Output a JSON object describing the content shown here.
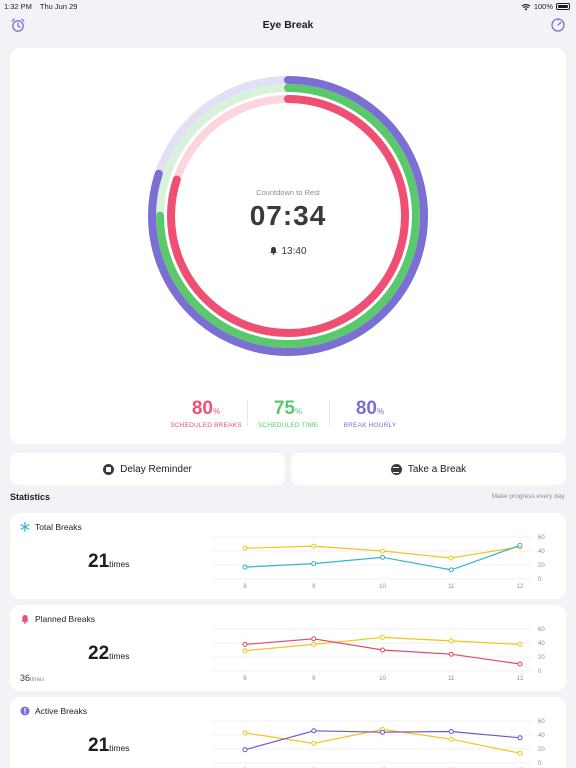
{
  "status": {
    "time": "1:32 PM",
    "date": "Thu Jun 29",
    "battery": "100%"
  },
  "nav": {
    "title": "Eye Break"
  },
  "timer": {
    "label": "Countdown to Rest",
    "countdown": "07:34",
    "alarm_time": "13:40",
    "rings": [
      {
        "name": "scheduled-breaks",
        "progress": 0.8,
        "color": "#ef4f73",
        "track": "#fbd6de"
      },
      {
        "name": "scheduled-time",
        "progress": 0.75,
        "color": "#5ac96b",
        "track": "#d9f2dc"
      },
      {
        "name": "break-hourly",
        "progress": 0.8,
        "color": "#7b6fd4",
        "track": "#e2e0f5"
      }
    ]
  },
  "summary": [
    {
      "value": "80",
      "unit": "%",
      "label": "SCHEDULED BREAKS",
      "color": "#ef4f73"
    },
    {
      "value": "75",
      "unit": "%",
      "label": "SCHEDULED TIME",
      "color": "#5ac96b"
    },
    {
      "value": "80",
      "unit": "%",
      "label": "BREAK HOURLY",
      "color": "#7b6fd4"
    }
  ],
  "actions": {
    "delay": "Delay Reminder",
    "take_break": "Take a Break"
  },
  "statistics": {
    "title": "Statistics",
    "hint": "Make progress every day."
  },
  "cards": [
    {
      "name": "Total Breaks",
      "count": "21",
      "unit": "times",
      "sub_count": "",
      "sub_unit": "",
      "icon_color": "#35b5c9"
    },
    {
      "name": "Planned Breaks",
      "count": "22",
      "unit": "times",
      "sub_count": "36",
      "sub_unit": "times",
      "icon_color": "#ef4f73"
    },
    {
      "name": "Active Breaks",
      "count": "21",
      "unit": "times",
      "sub_count": "",
      "sub_unit": "",
      "icon_color": "#7b6fd4"
    }
  ],
  "chart_data": [
    {
      "type": "line",
      "x": [
        "8",
        "9",
        "10",
        "11",
        "12"
      ],
      "ylim": [
        0,
        60
      ],
      "yticks": [
        "60",
        "40",
        "20",
        "0"
      ],
      "series": [
        {
          "values": [
            44,
            47,
            40,
            30,
            46
          ],
          "color": "#f5c518"
        },
        {
          "values": [
            17,
            22,
            31,
            13,
            48
          ],
          "color": "#35b5c9"
        }
      ]
    },
    {
      "type": "line",
      "x": [
        "8",
        "9",
        "10",
        "11",
        "12"
      ],
      "ylim": [
        0,
        60
      ],
      "yticks": [
        "60",
        "40",
        "20",
        "0"
      ],
      "series": [
        {
          "values": [
            29,
            38,
            48,
            43,
            38
          ],
          "color": "#f5c518"
        },
        {
          "values": [
            38,
            46,
            30,
            24,
            10
          ],
          "color": "#e0476b"
        }
      ]
    },
    {
      "type": "line",
      "x": [
        "8",
        "9",
        "10",
        "11",
        "12"
      ],
      "ylim": [
        0,
        60
      ],
      "yticks": [
        "60",
        "40",
        "20",
        "0"
      ],
      "series": [
        {
          "values": [
            43,
            28,
            48,
            34,
            14
          ],
          "color": "#f5c518"
        },
        {
          "values": [
            19,
            46,
            44,
            45,
            36
          ],
          "color": "#6a5acd"
        }
      ]
    }
  ]
}
